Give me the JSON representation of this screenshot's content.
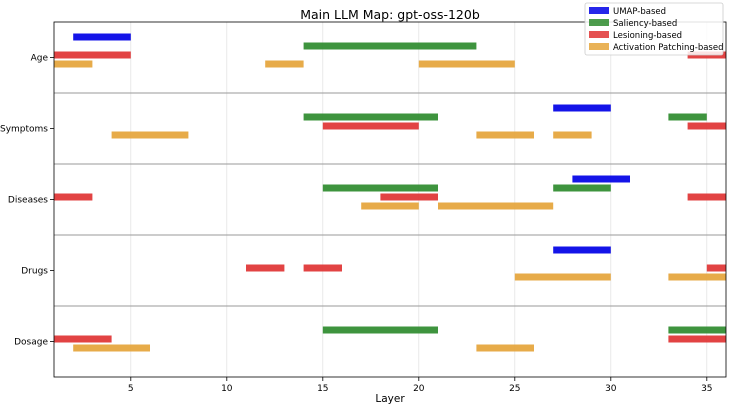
{
  "chart_data": {
    "type": "bar",
    "orientation": "horizontal-range",
    "title": "Main LLM Map: gpt-oss-120b",
    "xlabel": "Layer",
    "ylabel": "",
    "xlim": [
      1,
      36
    ],
    "xticks": [
      "5",
      "10",
      "15",
      "20",
      "25",
      "30",
      "35"
    ],
    "grid": true,
    "legend_position": "top-right",
    "categories": [
      "Age",
      "Symptoms",
      "Diseases",
      "Drugs",
      "Dosage"
    ],
    "series": [
      {
        "name": "UMAP-based",
        "color": "#0000e6",
        "intervals": {
          "Age": [
            [
              2,
              5
            ]
          ],
          "Symptoms": [
            [
              27,
              30
            ]
          ],
          "Diseases": [
            [
              28,
              31
            ]
          ],
          "Drugs": [
            [
              27,
              30
            ]
          ],
          "Dosage": []
        }
      },
      {
        "name": "Saliency-based",
        "color": "#2e8b2e",
        "intervals": {
          "Age": [
            [
              14,
              23
            ]
          ],
          "Symptoms": [
            [
              14,
              21
            ],
            [
              33,
              35
            ]
          ],
          "Diseases": [
            [
              15,
              21
            ],
            [
              27,
              30
            ]
          ],
          "Drugs": [],
          "Dosage": [
            [
              15,
              21
            ],
            [
              33,
              36
            ]
          ]
        }
      },
      {
        "name": "Lesioning-based",
        "color": "#e03333",
        "intervals": {
          "Age": [
            [
              1,
              5
            ],
            [
              34,
              36
            ]
          ],
          "Symptoms": [
            [
              15,
              20
            ],
            [
              34,
              36
            ]
          ],
          "Diseases": [
            [
              1,
              3
            ],
            [
              18,
              21
            ],
            [
              34,
              36
            ]
          ],
          "Drugs": [
            [
              11,
              13
            ],
            [
              14,
              16
            ],
            [
              35,
              36
            ]
          ],
          "Dosage": [
            [
              1,
              4
            ],
            [
              33,
              36
            ]
          ]
        }
      },
      {
        "name": "Activation Patching-based",
        "color": "#e5a43a",
        "intervals": {
          "Age": [
            [
              1,
              3
            ],
            [
              12,
              14
            ],
            [
              20,
              25
            ]
          ],
          "Symptoms": [
            [
              4,
              8
            ],
            [
              23,
              26
            ],
            [
              27,
              29
            ]
          ],
          "Diseases": [
            [
              17,
              20
            ],
            [
              21,
              27
            ]
          ],
          "Drugs": [
            [
              25,
              30
            ],
            [
              33,
              36
            ]
          ],
          "Dosage": [
            [
              2,
              6
            ],
            [
              23,
              26
            ]
          ]
        }
      }
    ]
  }
}
